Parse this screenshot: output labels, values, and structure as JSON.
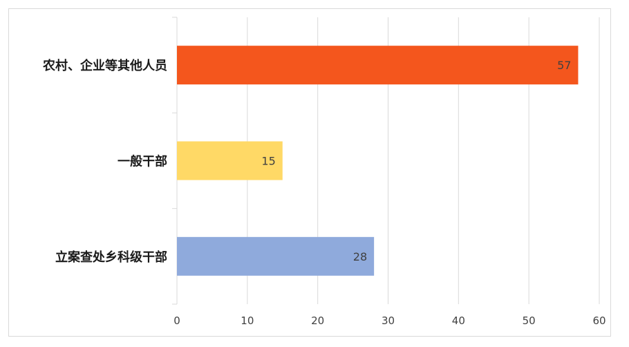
{
  "chart_data": {
    "type": "bar",
    "orientation": "horizontal",
    "categories": [
      "农村、企业等其他人员",
      "一般干部",
      "立案查处乡科级干部"
    ],
    "values": [
      57,
      15,
      28
    ],
    "colors": [
      "#f4561d",
      "#ffd966",
      "#8faadc"
    ],
    "title": "",
    "xlabel": "",
    "ylabel": "",
    "xlim": [
      0,
      60
    ],
    "xticks": [
      "0",
      "10",
      "20",
      "30",
      "40",
      "50",
      "60"
    ],
    "data_labels": [
      "57",
      "15",
      "28"
    ],
    "grid": true,
    "legend": "none"
  }
}
